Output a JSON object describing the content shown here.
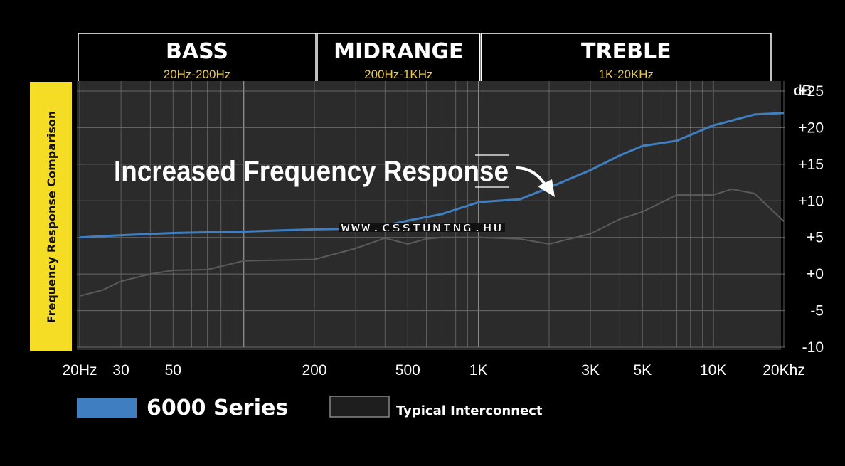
{
  "chart_data": {
    "type": "line",
    "title": "",
    "side_label": "Frequency Response Comparison",
    "annotation": "Increased Frequency Response",
    "watermark": "WWW.CSSTUNING.HU",
    "x_scale": "log",
    "xlim": [
      20,
      20000
    ],
    "ylim": [
      -10,
      25
    ],
    "ylabel": "dB",
    "x_ticks": [
      {
        "value": 20,
        "label": "20Hz"
      },
      {
        "value": 30,
        "label": "30"
      },
      {
        "value": 50,
        "label": "50"
      },
      {
        "value": 200,
        "label": "200"
      },
      {
        "value": 500,
        "label": "500"
      },
      {
        "value": 1000,
        "label": "1K"
      },
      {
        "value": 3000,
        "label": "3K"
      },
      {
        "value": 5000,
        "label": "5K"
      },
      {
        "value": 10000,
        "label": "10K"
      },
      {
        "value": 20000,
        "label": "20Khz"
      }
    ],
    "y_ticks": [
      {
        "value": 25,
        "label": "+25"
      },
      {
        "value": 20,
        "label": "+20"
      },
      {
        "value": 15,
        "label": "+15"
      },
      {
        "value": 10,
        "label": "+10"
      },
      {
        "value": 5,
        "label": "+5"
      },
      {
        "value": 0,
        "label": "+0"
      },
      {
        "value": -5,
        "label": "-5"
      },
      {
        "value": -10,
        "label": "-10"
      }
    ],
    "bands": [
      {
        "name": "BASS",
        "range": "20Hz-200Hz",
        "from": 20,
        "to": 200
      },
      {
        "name": "MIDRANGE",
        "range": "200Hz-1KHz",
        "from": 200,
        "to": 1000
      },
      {
        "name": "TREBLE",
        "range": "1K-20KHz",
        "from": 1000,
        "to": 20000
      }
    ],
    "grid": true,
    "legend_position": "bottom-left",
    "series": [
      {
        "name": "6000 Series",
        "color": "#3f7fc1",
        "x": [
          20,
          30,
          50,
          100,
          200,
          300,
          400,
          500,
          700,
          1000,
          1200,
          1500,
          2000,
          3000,
          4000,
          5000,
          7000,
          10000,
          15000,
          20000
        ],
        "y": [
          5,
          5.3,
          5.6,
          5.8,
          6.1,
          6.2,
          6.6,
          7.3,
          8.2,
          9.8,
          10.0,
          10.2,
          11.8,
          14.2,
          16.2,
          17.5,
          18.2,
          20.3,
          21.8,
          22
        ]
      },
      {
        "name": "Typical Interconnect",
        "color": "#5a5a5a",
        "x": [
          20,
          25,
          30,
          40,
          50,
          70,
          100,
          200,
          300,
          400,
          500,
          600,
          700,
          1000,
          1500,
          2000,
          3000,
          4000,
          5000,
          7000,
          10000,
          12000,
          15000,
          20000
        ],
        "y": [
          -3,
          -2.2,
          -1,
          0,
          0.5,
          0.6,
          1.8,
          2,
          3.5,
          4.9,
          4.1,
          4.8,
          5.0,
          5.0,
          4.8,
          4.1,
          5.5,
          7.5,
          8.5,
          10.8,
          10.8,
          11.6,
          11.0,
          7.2
        ]
      }
    ]
  }
}
